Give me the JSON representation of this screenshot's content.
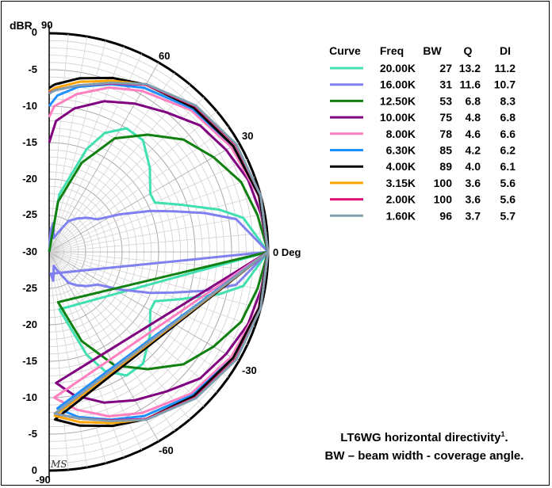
{
  "chart_data": {
    "type": "polar",
    "unit_label": "dBR",
    "radial_range_db": [
      -30,
      0
    ],
    "radial_ticks_upper": [
      "0",
      "-5",
      "-10",
      "-15",
      "-20",
      "-25",
      "-30"
    ],
    "radial_ticks_lower": [
      "-25",
      "-20",
      "-15",
      "-10",
      "-5",
      "0"
    ],
    "angle_labels": [
      "90",
      "60",
      "30",
      "0 Deg",
      "-30",
      "-60",
      "-90"
    ],
    "grid": true,
    "legend": {
      "position": "top-right",
      "headers": [
        "Curve",
        "Freq",
        "BW",
        "Q",
        "DI"
      ],
      "rows": [
        {
          "color": "#40E0B0",
          "freq": "20.00K",
          "bw": "27",
          "q": "13.2",
          "di": "11.2"
        },
        {
          "color": "#8080F0",
          "freq": "16.00K",
          "bw": "31",
          "q": "11.6",
          "di": "10.7"
        },
        {
          "color": "#108010",
          "freq": "12.50K",
          "bw": "53",
          "q": "6.8",
          "di": "8.3"
        },
        {
          "color": "#800080",
          "freq": "10.00K",
          "bw": "75",
          "q": "4.8",
          "di": "6.8"
        },
        {
          "color": "#FF80C0",
          "freq": "8.00K",
          "bw": "78",
          "q": "4.6",
          "di": "6.6"
        },
        {
          "color": "#1E90FF",
          "freq": "6.30K",
          "bw": "85",
          "q": "4.2",
          "di": "6.2"
        },
        {
          "color": "#000000",
          "freq": "4.00K",
          "bw": "89",
          "q": "4.0",
          "di": "6.1"
        },
        {
          "color": "#FFA500",
          "freq": "3.15K",
          "bw": "100",
          "q": "3.6",
          "di": "5.6"
        },
        {
          "color": "#E0107A",
          "freq": "2.00K",
          "bw": "100",
          "q": "3.6",
          "di": "5.6"
        },
        {
          "color": "#80A0B0",
          "freq": "1.60K",
          "bw": "96",
          "q": "3.7",
          "di": "5.7"
        }
      ]
    },
    "series": [
      {
        "freq": "20.00K",
        "color": "#40E0B0",
        "points": [
          [
            0,
            0
          ],
          [
            10,
            -3
          ],
          [
            14,
            -6
          ],
          [
            20,
            -11
          ],
          [
            25,
            -14
          ],
          [
            30,
            -14
          ],
          [
            40,
            -12
          ],
          [
            50,
            -10
          ],
          [
            58,
            -10
          ],
          [
            65,
            -12
          ],
          [
            70,
            -15
          ],
          [
            80,
            -22
          ],
          [
            90,
            -30
          ]
        ]
      },
      {
        "freq": "16.00K",
        "color": "#8080F0",
        "points": [
          [
            0,
            0
          ],
          [
            10,
            -4
          ],
          [
            14,
            -8
          ],
          [
            18,
            -12
          ],
          [
            22,
            -15
          ],
          [
            28,
            -19
          ],
          [
            34,
            -22
          ],
          [
            42,
            -23
          ],
          [
            50,
            -24
          ],
          [
            58,
            -25
          ],
          [
            65,
            -27
          ],
          [
            72,
            -28
          ],
          [
            78,
            -27
          ],
          [
            82,
            -26
          ],
          [
            86,
            -27
          ],
          [
            90,
            -30
          ]
        ]
      },
      {
        "freq": "12.50K",
        "color": "#108010",
        "points": [
          [
            0,
            0
          ],
          [
            10,
            -1
          ],
          [
            20,
            -2
          ],
          [
            30,
            -4
          ],
          [
            40,
            -6
          ],
          [
            50,
            -9
          ],
          [
            60,
            -12
          ],
          [
            70,
            -17
          ],
          [
            80,
            -23
          ],
          [
            90,
            -30
          ]
        ]
      },
      {
        "freq": "10.00K",
        "color": "#800080",
        "points": [
          [
            0,
            0
          ],
          [
            10,
            -0.5
          ],
          [
            20,
            -1
          ],
          [
            30,
            -2
          ],
          [
            40,
            -3
          ],
          [
            50,
            -5
          ],
          [
            60,
            -6.5
          ],
          [
            70,
            -8
          ],
          [
            80,
            -10
          ],
          [
            87,
            -12
          ],
          [
            90,
            -15
          ]
        ]
      },
      {
        "freq": "8.00K",
        "color": "#FF80C0",
        "points": [
          [
            0,
            0
          ],
          [
            15,
            -0.3
          ],
          [
            30,
            -1.2
          ],
          [
            45,
            -2.5
          ],
          [
            60,
            -4.5
          ],
          [
            70,
            -6
          ],
          [
            80,
            -8
          ],
          [
            88,
            -10
          ],
          [
            90,
            -11.5
          ]
        ]
      },
      {
        "freq": "6.30K",
        "color": "#1E90FF",
        "points": [
          [
            0,
            0
          ],
          [
            15,
            -0.2
          ],
          [
            30,
            -0.9
          ],
          [
            45,
            -2.2
          ],
          [
            60,
            -4
          ],
          [
            70,
            -5.5
          ],
          [
            80,
            -7
          ],
          [
            87,
            -8.5
          ],
          [
            90,
            -10
          ]
        ]
      },
      {
        "freq": "4.00K",
        "color": "#000000",
        "points": [
          [
            0,
            0
          ],
          [
            15,
            -0.2
          ],
          [
            30,
            -0.9
          ],
          [
            45,
            -2
          ],
          [
            60,
            -3.5
          ],
          [
            70,
            -4.6
          ],
          [
            80,
            -5.8
          ],
          [
            88,
            -7
          ],
          [
            90,
            -7.5
          ]
        ]
      },
      {
        "freq": "3.15K",
        "color": "#FFA500",
        "points": [
          [
            0,
            0
          ],
          [
            15,
            0
          ],
          [
            30,
            -0.5
          ],
          [
            45,
            -1.7
          ],
          [
            60,
            -3.5
          ],
          [
            70,
            -5
          ],
          [
            80,
            -6.3
          ],
          [
            88,
            -7.5
          ],
          [
            90,
            -8
          ]
        ]
      },
      {
        "freq": "2.00K",
        "color": "#E0107A",
        "points": [
          [
            0,
            0
          ],
          [
            15,
            0
          ],
          [
            30,
            -0.5
          ],
          [
            45,
            -1.7
          ],
          [
            60,
            -3.5
          ],
          [
            70,
            -5.4
          ],
          [
            80,
            -6.8
          ],
          [
            88,
            -7.8
          ],
          [
            90,
            -8.2
          ]
        ]
      },
      {
        "freq": "1.60K",
        "color": "#80A0B0",
        "points": [
          [
            0,
            0
          ],
          [
            15,
            0
          ],
          [
            30,
            -0.4
          ],
          [
            45,
            -1.6
          ],
          [
            60,
            -3.4
          ],
          [
            70,
            -5.3
          ],
          [
            80,
            -6.8
          ],
          [
            88,
            -7.8
          ],
          [
            90,
            -8.3
          ]
        ]
      }
    ],
    "annotations": [
      "LT6WG horizontal directivity",
      "1",
      ".",
      "BW – beam width - coverage angle."
    ],
    "signature": "MS"
  }
}
